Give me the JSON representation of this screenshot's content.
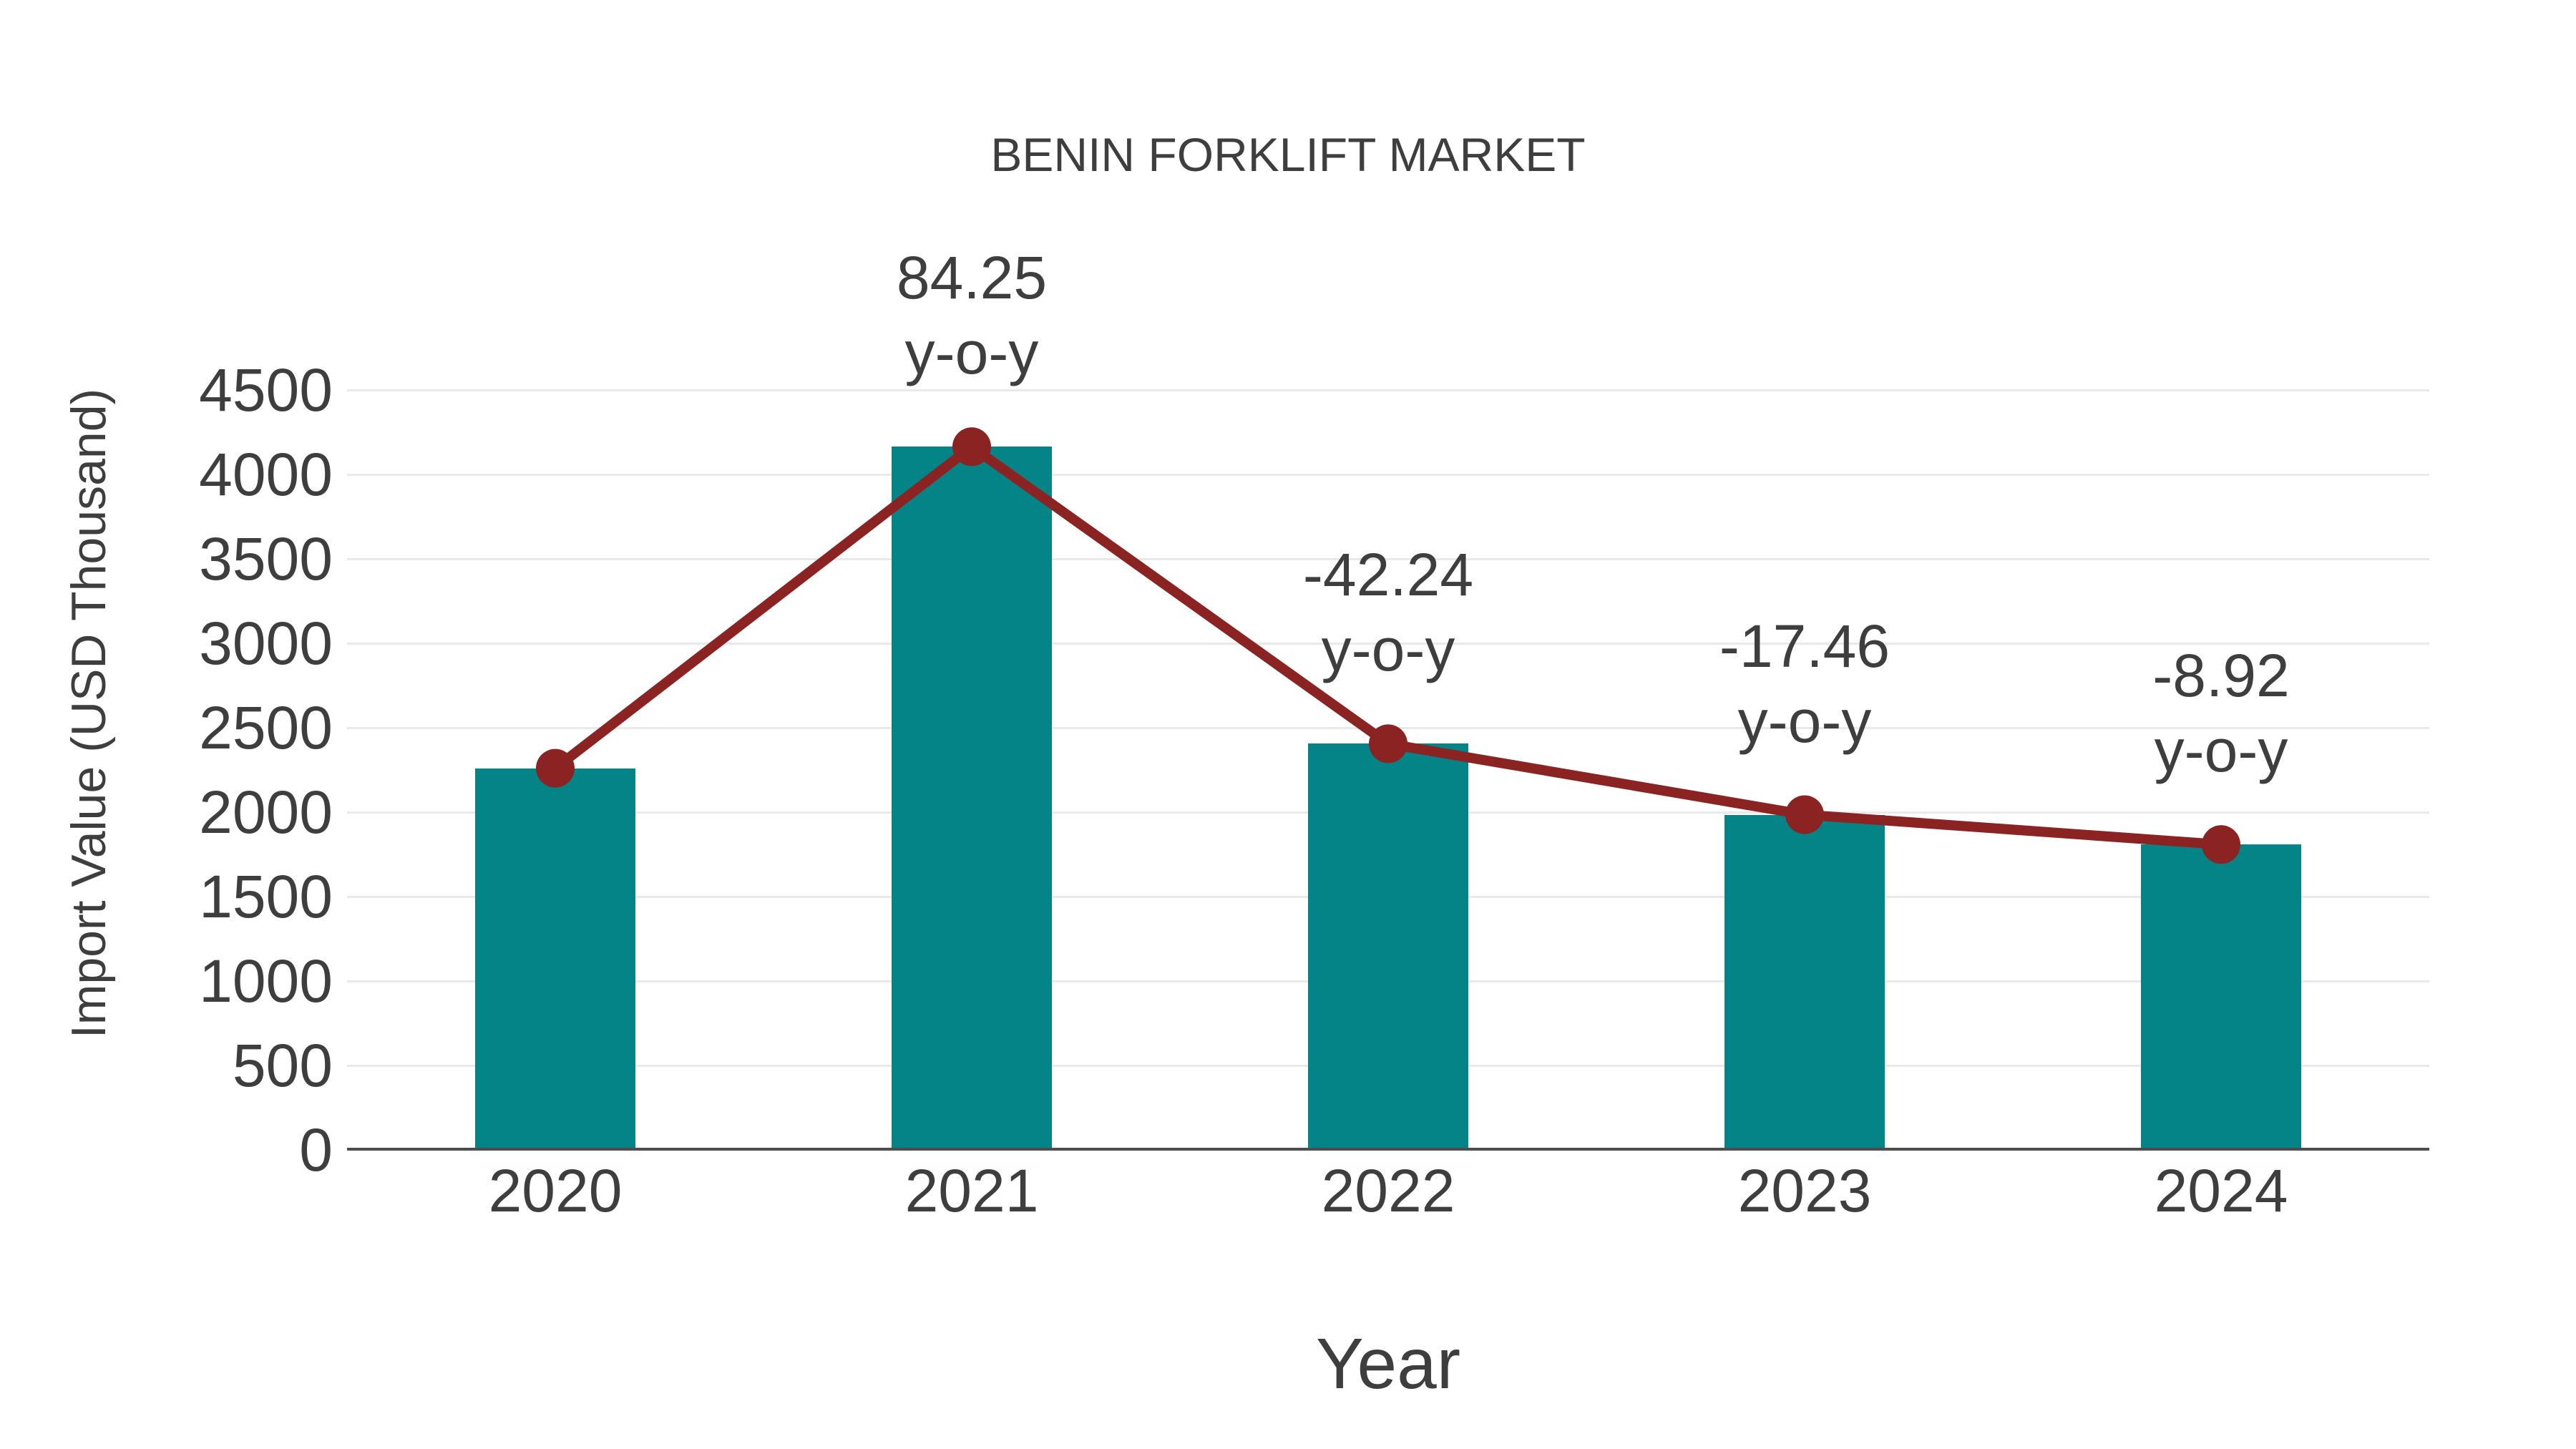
{
  "chart_data": {
    "type": "bar",
    "title": "BENIN FORKLIFT MARKET",
    "xlabel": "Year",
    "ylabel": "Import Value (USD Thousand)",
    "categories": [
      "2020",
      "2021",
      "2022",
      "2023",
      "2024"
    ],
    "series": [
      {
        "name": "Import Value (USD Thousand)",
        "type": "bar",
        "values": [
          2260,
          4164,
          2405,
          1985,
          1808
        ]
      },
      {
        "name": "y-o-y growth",
        "type": "line",
        "values": [
          2260,
          4164,
          2405,
          1985,
          1808
        ],
        "point_labels": [
          "",
          "84.25",
          "-42.24",
          "-17.46",
          "-8.92"
        ],
        "point_label_suffix": "y-o-y"
      }
    ],
    "ylim": [
      0,
      4500
    ],
    "yticks": [
      0,
      500,
      1000,
      1500,
      2000,
      2500,
      3000,
      3500,
      4000,
      4500
    ],
    "grid": true,
    "legend": false
  },
  "colors": {
    "bar": "#058488",
    "line": "#8b2323",
    "text": "#3e3e3e",
    "grid": "#e9e9e9",
    "axis": "#4d4d4d"
  }
}
